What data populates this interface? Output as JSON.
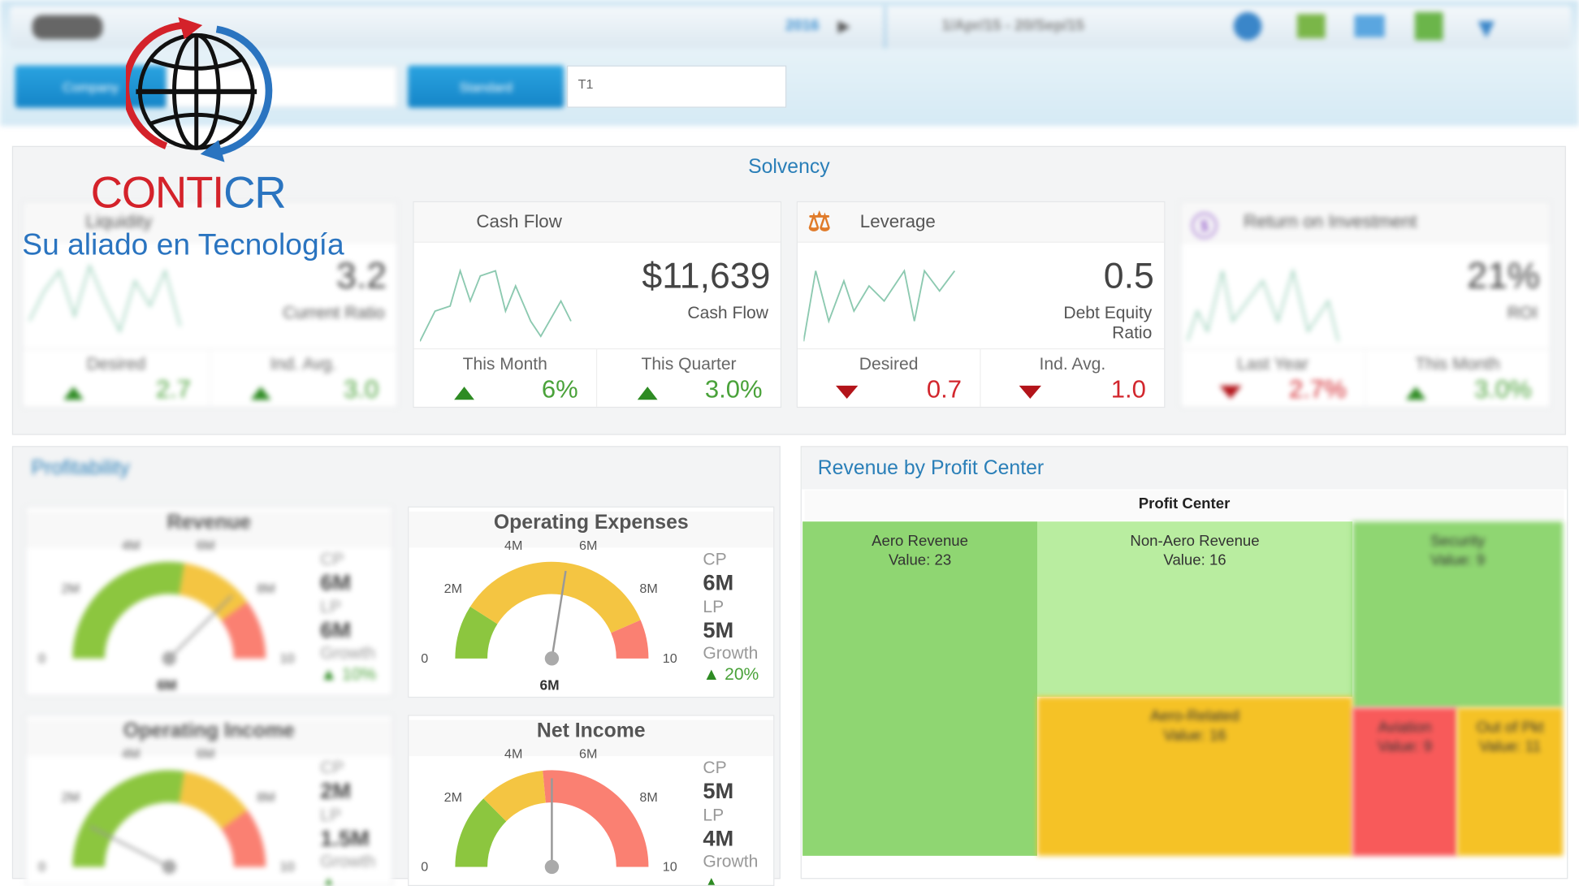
{
  "toolbar": {
    "year": "2016",
    "date_range": "1/Apr/15 - 20/Sep/15",
    "company_label": "Company",
    "company_value": "",
    "scenario_label": "Standard",
    "scenario_value": "T1"
  },
  "logo": {
    "brand_left": "CONTI",
    "brand_right": "CR",
    "tagline": "Su aliado en Tecnología"
  },
  "solvency": {
    "title": "Solvency",
    "cards": [
      {
        "title": "Liquidity",
        "value": "3.2",
        "label": "Current Ratio",
        "cells": [
          {
            "label": "Desired",
            "value": "2.7",
            "trend": "up"
          },
          {
            "label": "Ind. Avg.",
            "value": "3.0",
            "trend": "up"
          }
        ]
      },
      {
        "title": "Cash Flow",
        "value": "$11,639",
        "label": "Cash Flow",
        "cells": [
          {
            "label": "This Month",
            "value": "6%",
            "trend": "up"
          },
          {
            "label": "This Quarter",
            "value": "3.0%",
            "trend": "up"
          }
        ]
      },
      {
        "title": "Leverage",
        "value": "0.5",
        "label": "Debt Equity Ratio",
        "cells": [
          {
            "label": "Desired",
            "value": "0.7",
            "trend": "down"
          },
          {
            "label": "Ind. Avg.",
            "value": "1.0",
            "trend": "down"
          }
        ]
      },
      {
        "title": "Return on Investment",
        "value": "21%",
        "label": "ROI",
        "cells": [
          {
            "label": "Last Year",
            "value": "2.7%",
            "trend": "down"
          },
          {
            "label": "This Month",
            "value": "3.0%",
            "trend": "up"
          }
        ]
      }
    ]
  },
  "profitability": {
    "title": "Profitability",
    "gauges": [
      {
        "title": "Revenue",
        "ticks": [
          "0",
          "2M",
          "4M",
          "6M",
          "8M",
          "10"
        ],
        "value_label": "6M",
        "cp_label": "CP",
        "cp": "6M",
        "lp_label": "LP",
        "lp": "6M",
        "growth_label": "Growth",
        "growth": "10%"
      },
      {
        "title": "Operating Expenses",
        "ticks": [
          "0",
          "2M",
          "4M",
          "6M",
          "8M",
          "10"
        ],
        "value_label": "6M",
        "cp_label": "CP",
        "cp": "6M",
        "lp_label": "LP",
        "lp": "5M",
        "growth_label": "Growth",
        "growth": "20%"
      },
      {
        "title": "Operating Income",
        "ticks": [
          "0",
          "2M",
          "4M",
          "6M",
          "8M",
          "10"
        ],
        "value_label": "",
        "cp_label": "CP",
        "cp": "2M",
        "lp_label": "LP",
        "lp": "1.5M",
        "growth_label": "Growth",
        "growth": ""
      },
      {
        "title": "Net Income",
        "ticks": [
          "0",
          "2M",
          "4M",
          "6M",
          "8M",
          "10"
        ],
        "value_label": "",
        "cp_label": "CP",
        "cp": "5M",
        "lp_label": "LP",
        "lp": "4M",
        "growth_label": "Growth",
        "growth": ""
      }
    ]
  },
  "revenue": {
    "title": "Revenue by Profit Center",
    "header": "Profit Center",
    "value_prefix": "Value:",
    "cells": [
      {
        "name": "Aero Revenue",
        "value": "23",
        "color": "#8fd672"
      },
      {
        "name": "Non-Aero Revenue",
        "value": "16",
        "color": "#b9eda0"
      },
      {
        "name": "Security",
        "value": "9",
        "color": "#8fd672"
      },
      {
        "name": "Aero-Related",
        "value": "16",
        "color": "#f5c226"
      },
      {
        "name": "Aviation",
        "value": "9",
        "color": "#f85a5a"
      },
      {
        "name": "Out of Pkt",
        "value": "11",
        "color": "#f5c226"
      }
    ]
  }
}
